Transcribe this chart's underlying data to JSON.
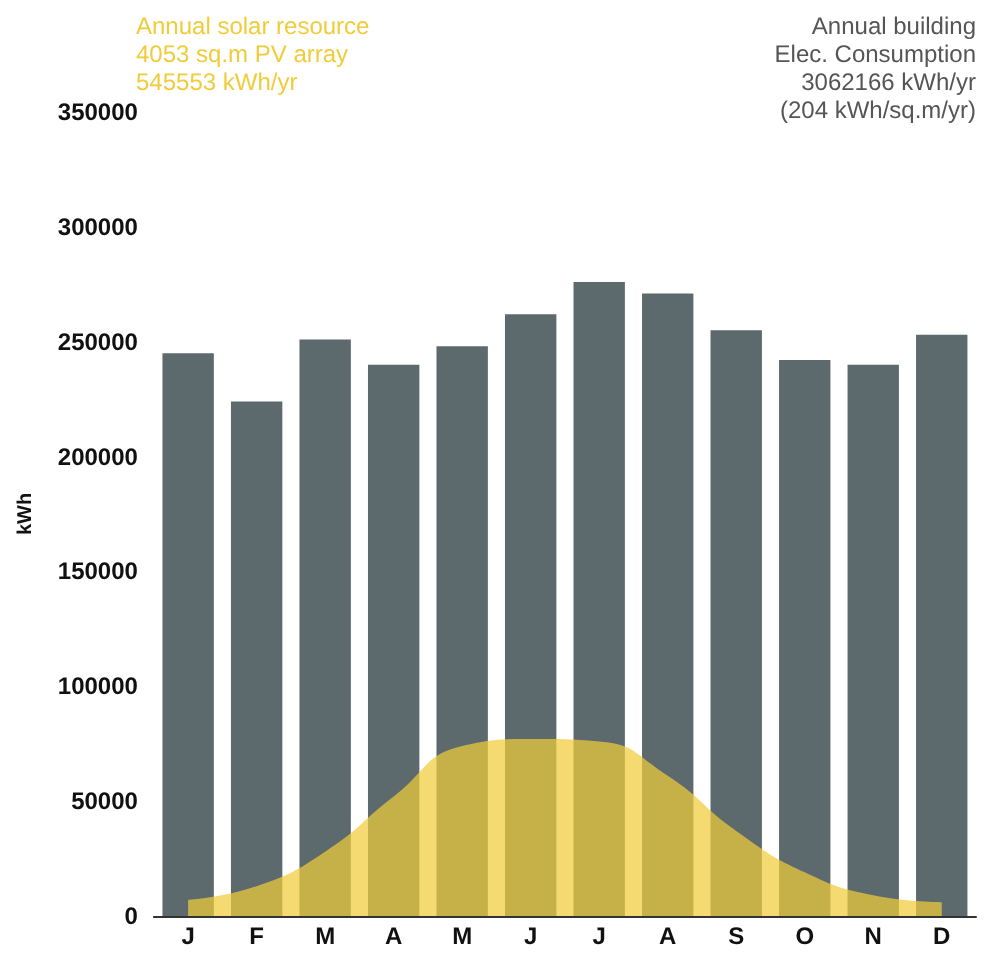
{
  "chart_data": {
    "type": "bar",
    "ylabel": "kWh",
    "categories": [
      "J",
      "F",
      "M",
      "A",
      "M",
      "J",
      "J",
      "A",
      "S",
      "O",
      "N",
      "D"
    ],
    "series": [
      {
        "color": "#5c6a6e",
        "values": [
          245000,
          224000,
          251000,
          240000,
          248000,
          262000,
          276000,
          271000,
          255000,
          242000,
          240000,
          253000
        ]
      },
      {
        "type": "area",
        "color": "#f0cc3a",
        "values": [
          7000,
          13000,
          28000,
          52000,
          74000,
          77000,
          76000,
          61000,
          37000,
          19000,
          9000,
          6000
        ]
      }
    ],
    "ylim": [
      0,
      350000
    ],
    "yticks": [
      0,
      50000,
      100000,
      150000,
      200000,
      250000,
      300000,
      350000
    ],
    "grid": false,
    "annotations": [
      "Annual solar resource\n4053 sq.m PV array\n545553 kWh/yr",
      "Annual building\nElec. Consumption\n3062166 kWh/yr\n(204 kWh/sq.m/yr)"
    ]
  }
}
